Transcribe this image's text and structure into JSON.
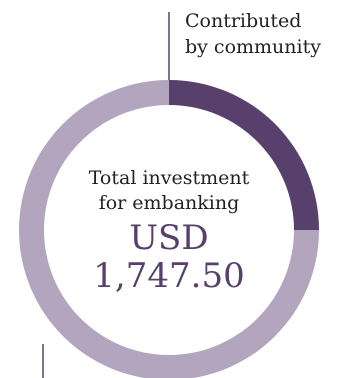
{
  "chart_data": {
    "type": "pie",
    "variant": "donut",
    "title": "",
    "slices": [
      {
        "label": "Contributed by community",
        "value": 0.25,
        "color": "#57406c"
      },
      {
        "label": "",
        "value": 0.75,
        "color": "#b3a5bd"
      }
    ],
    "annotations": {
      "community_line1": "Contributed",
      "community_line2": "by community"
    },
    "center": {
      "line1": "Total investment",
      "line2": "for embanking",
      "currency": "USD",
      "total": "1,747.50"
    }
  }
}
